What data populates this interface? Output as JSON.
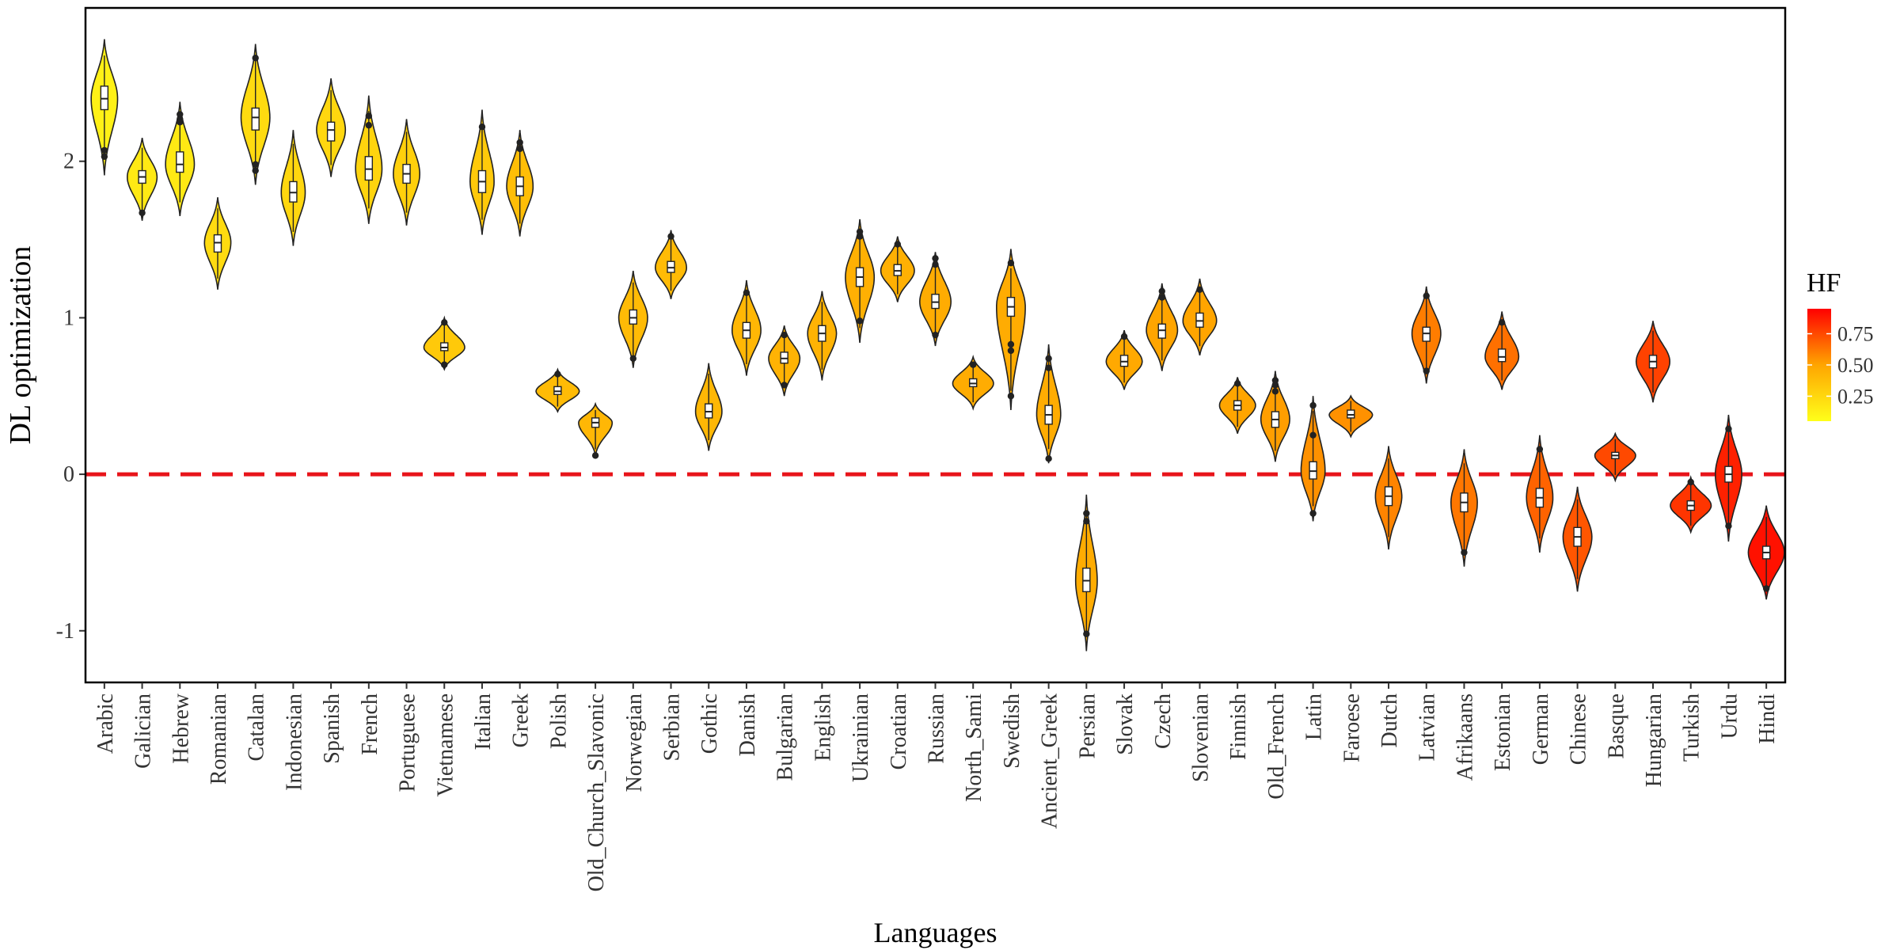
{
  "chart_data": {
    "type": "violin",
    "xlabel": "Languages",
    "ylabel": "DL optimization",
    "ylim": [
      -1.33,
      2.98
    ],
    "y_ticks": [
      "-1",
      "0",
      "1",
      "2"
    ],
    "y_tick_values": [
      -1,
      0,
      1,
      2
    ],
    "reference_line": {
      "y": 0,
      "style": "dashed",
      "color": "#e8141a"
    },
    "legend": {
      "title": "HF",
      "type": "colorbar",
      "placement": "right",
      "ticks": [
        "0.75",
        "0.50",
        "0.25"
      ],
      "tick_values": [
        0.75,
        0.5,
        0.25
      ],
      "range": [
        0.05,
        0.95
      ],
      "low_color": "#ffff1a",
      "mid_color": "#ffa500",
      "high_color": "#ff0000"
    },
    "categories": [
      {
        "name": "Arabic",
        "center": 2.4,
        "min": 1.91,
        "max": 2.78,
        "width": 0.55,
        "q1": 2.33,
        "q3": 2.48,
        "hf": 0.08,
        "outliers": [
          2.03,
          2.07
        ]
      },
      {
        "name": "Galician",
        "center": 1.9,
        "min": 1.62,
        "max": 2.15,
        "width": 0.62,
        "q1": 1.86,
        "q3": 1.94,
        "hf": 0.12,
        "outliers": [
          1.67
        ]
      },
      {
        "name": "Hebrew",
        "center": 1.98,
        "min": 1.65,
        "max": 2.38,
        "width": 0.6,
        "q1": 1.93,
        "q3": 2.06,
        "hf": 0.12,
        "outliers": [
          2.25,
          2.27,
          2.3
        ]
      },
      {
        "name": "Romanian",
        "center": 1.48,
        "min": 1.18,
        "max": 1.77,
        "width": 0.55,
        "q1": 1.42,
        "q3": 1.53,
        "hf": 0.2,
        "outliers": []
      },
      {
        "name": "Catalan",
        "center": 2.28,
        "min": 1.85,
        "max": 2.75,
        "width": 0.6,
        "q1": 2.2,
        "q3": 2.34,
        "hf": 0.2,
        "outliers": [
          1.94,
          1.98,
          2.66
        ]
      },
      {
        "name": "Indonesian",
        "center": 1.8,
        "min": 1.46,
        "max": 2.2,
        "width": 0.5,
        "q1": 1.74,
        "q3": 1.87,
        "hf": 0.22,
        "outliers": []
      },
      {
        "name": "Spanish",
        "center": 2.2,
        "min": 1.9,
        "max": 2.53,
        "width": 0.6,
        "q1": 2.13,
        "q3": 2.25,
        "hf": 0.22,
        "outliers": []
      },
      {
        "name": "French",
        "center": 1.95,
        "min": 1.6,
        "max": 2.42,
        "width": 0.55,
        "q1": 1.88,
        "q3": 2.03,
        "hf": 0.24,
        "outliers": [
          2.23,
          2.29
        ]
      },
      {
        "name": "Portuguese",
        "center": 1.92,
        "min": 1.59,
        "max": 2.27,
        "width": 0.55,
        "q1": 1.86,
        "q3": 1.98,
        "hf": 0.26,
        "outliers": []
      },
      {
        "name": "Vietnamese",
        "center": 0.81,
        "min": 0.67,
        "max": 1.0,
        "width": 0.85,
        "q1": 0.79,
        "q3": 0.84,
        "hf": 0.3,
        "outliers": [
          0.7,
          0.97
        ]
      },
      {
        "name": "Italian",
        "center": 1.87,
        "min": 1.53,
        "max": 2.33,
        "width": 0.5,
        "q1": 1.8,
        "q3": 1.94,
        "hf": 0.3,
        "outliers": [
          2.22
        ]
      },
      {
        "name": "Greek",
        "center": 1.84,
        "min": 1.52,
        "max": 2.2,
        "width": 0.55,
        "q1": 1.78,
        "q3": 1.9,
        "hf": 0.36,
        "outliers": [
          2.08,
          2.12
        ]
      },
      {
        "name": "Polish",
        "center": 0.53,
        "min": 0.4,
        "max": 0.67,
        "width": 0.9,
        "q1": 0.51,
        "q3": 0.56,
        "hf": 0.38,
        "outliers": [
          0.64
        ]
      },
      {
        "name": "Old_Church_Slavonic",
        "center": 0.33,
        "min": 0.12,
        "max": 0.45,
        "width": 0.7,
        "q1": 0.3,
        "q3": 0.36,
        "hf": 0.4,
        "outliers": [
          0.12
        ]
      },
      {
        "name": "Norwegian",
        "center": 1.0,
        "min": 0.68,
        "max": 1.3,
        "width": 0.6,
        "q1": 0.96,
        "q3": 1.05,
        "hf": 0.38,
        "outliers": [
          0.74
        ]
      },
      {
        "name": "Serbian",
        "center": 1.32,
        "min": 1.12,
        "max": 1.56,
        "width": 0.65,
        "q1": 1.29,
        "q3": 1.36,
        "hf": 0.38,
        "outliers": [
          1.52
        ]
      },
      {
        "name": "Gothic",
        "center": 0.4,
        "min": 0.15,
        "max": 0.71,
        "width": 0.55,
        "q1": 0.36,
        "q3": 0.45,
        "hf": 0.4,
        "outliers": []
      },
      {
        "name": "Danish",
        "center": 0.92,
        "min": 0.63,
        "max": 1.24,
        "width": 0.6,
        "q1": 0.87,
        "q3": 0.97,
        "hf": 0.4,
        "outliers": [
          1.16
        ]
      },
      {
        "name": "Bulgarian",
        "center": 0.74,
        "min": 0.5,
        "max": 0.95,
        "width": 0.65,
        "q1": 0.71,
        "q3": 0.78,
        "hf": 0.42,
        "outliers": [
          0.57,
          0.89
        ]
      },
      {
        "name": "English",
        "center": 0.9,
        "min": 0.6,
        "max": 1.17,
        "width": 0.6,
        "q1": 0.85,
        "q3": 0.95,
        "hf": 0.42,
        "outliers": []
      },
      {
        "name": "Ukrainian",
        "center": 1.26,
        "min": 0.84,
        "max": 1.63,
        "width": 0.6,
        "q1": 1.2,
        "q3": 1.32,
        "hf": 0.44,
        "outliers": [
          0.98,
          1.52,
          1.55
        ]
      },
      {
        "name": "Croatian",
        "center": 1.3,
        "min": 1.1,
        "max": 1.52,
        "width": 0.7,
        "q1": 1.27,
        "q3": 1.34,
        "hf": 0.44,
        "outliers": [
          1.47
        ]
      },
      {
        "name": "Russian",
        "center": 1.1,
        "min": 0.82,
        "max": 1.42,
        "width": 0.65,
        "q1": 1.06,
        "q3": 1.15,
        "hf": 0.46,
        "outliers": [
          0.89,
          1.34,
          1.38
        ]
      },
      {
        "name": "North_Sami",
        "center": 0.58,
        "min": 0.42,
        "max": 0.75,
        "width": 0.85,
        "q1": 0.56,
        "q3": 0.61,
        "hf": 0.46,
        "outliers": [
          0.7
        ]
      },
      {
        "name": "Swedish",
        "center": 1.07,
        "min": 0.41,
        "max": 1.44,
        "width": 0.6,
        "q1": 1.01,
        "q3": 1.13,
        "hf": 0.46,
        "outliers": [
          0.5,
          0.79,
          0.83,
          1.35
        ]
      },
      {
        "name": "Ancient_Greek",
        "center": 0.38,
        "min": 0.07,
        "max": 0.83,
        "width": 0.5,
        "q1": 0.32,
        "q3": 0.44,
        "hf": 0.46,
        "outliers": [
          0.1,
          0.68,
          0.74
        ]
      },
      {
        "name": "Persian",
        "center": -0.68,
        "min": -1.13,
        "max": -0.13,
        "width": 0.45,
        "q1": -0.75,
        "q3": -0.6,
        "hf": 0.46,
        "outliers": [
          -1.02,
          -0.3,
          -0.25
        ]
      },
      {
        "name": "Slovak",
        "center": 0.72,
        "min": 0.54,
        "max": 0.92,
        "width": 0.75,
        "q1": 0.69,
        "q3": 0.76,
        "hf": 0.48,
        "outliers": [
          0.88
        ]
      },
      {
        "name": "Czech",
        "center": 0.92,
        "min": 0.66,
        "max": 1.22,
        "width": 0.65,
        "q1": 0.87,
        "q3": 0.96,
        "hf": 0.5,
        "outliers": [
          1.13,
          1.17
        ]
      },
      {
        "name": "Slovenian",
        "center": 0.98,
        "min": 0.76,
        "max": 1.25,
        "width": 0.7,
        "q1": 0.94,
        "q3": 1.03,
        "hf": 0.5,
        "outliers": [
          1.18
        ]
      },
      {
        "name": "Finnish",
        "center": 0.44,
        "min": 0.26,
        "max": 0.62,
        "width": 0.75,
        "q1": 0.41,
        "q3": 0.47,
        "hf": 0.5,
        "outliers": [
          0.58
        ]
      },
      {
        "name": "Old_French",
        "center": 0.35,
        "min": 0.08,
        "max": 0.66,
        "width": 0.6,
        "q1": 0.3,
        "q3": 0.4,
        "hf": 0.52,
        "outliers": [
          0.53,
          0.57,
          0.6
        ]
      },
      {
        "name": "Latin",
        "center": 0.02,
        "min": -0.3,
        "max": 0.5,
        "width": 0.5,
        "q1": -0.03,
        "q3": 0.08,
        "hf": 0.56,
        "outliers": [
          -0.25,
          0.25,
          0.44
        ]
      },
      {
        "name": "Faroese",
        "center": 0.38,
        "min": 0.24,
        "max": 0.5,
        "width": 0.9,
        "q1": 0.36,
        "q3": 0.41,
        "hf": 0.56,
        "outliers": []
      },
      {
        "name": "Dutch",
        "center": -0.14,
        "min": -0.48,
        "max": 0.18,
        "width": 0.55,
        "q1": -0.2,
        "q3": -0.08,
        "hf": 0.6,
        "outliers": []
      },
      {
        "name": "Latvian",
        "center": 0.9,
        "min": 0.58,
        "max": 1.2,
        "width": 0.6,
        "q1": 0.85,
        "q3": 0.94,
        "hf": 0.62,
        "outliers": [
          0.66,
          1.14
        ]
      },
      {
        "name": "Afrikaans",
        "center": -0.18,
        "min": -0.59,
        "max": 0.16,
        "width": 0.55,
        "q1": -0.24,
        "q3": -0.12,
        "hf": 0.64,
        "outliers": [
          -0.5
        ]
      },
      {
        "name": "Estonian",
        "center": 0.75,
        "min": 0.54,
        "max": 1.04,
        "width": 0.7,
        "q1": 0.72,
        "q3": 0.8,
        "hf": 0.66,
        "outliers": [
          0.97
        ]
      },
      {
        "name": "German",
        "center": -0.15,
        "min": -0.5,
        "max": 0.25,
        "width": 0.55,
        "q1": -0.21,
        "q3": -0.09,
        "hf": 0.7,
        "outliers": [
          0.16
        ]
      },
      {
        "name": "Chinese",
        "center": -0.4,
        "min": -0.75,
        "max": -0.08,
        "width": 0.6,
        "q1": -0.46,
        "q3": -0.34,
        "hf": 0.74,
        "outliers": []
      },
      {
        "name": "Basque",
        "center": 0.12,
        "min": -0.04,
        "max": 0.26,
        "width": 0.85,
        "q1": 0.1,
        "q3": 0.14,
        "hf": 0.78,
        "outliers": []
      },
      {
        "name": "Hungarian",
        "center": 0.72,
        "min": 0.46,
        "max": 0.98,
        "width": 0.7,
        "q1": 0.68,
        "q3": 0.76,
        "hf": 0.8,
        "outliers": []
      },
      {
        "name": "Turkish",
        "center": -0.2,
        "min": -0.37,
        "max": -0.02,
        "width": 0.85,
        "q1": -0.23,
        "q3": -0.17,
        "hf": 0.84,
        "outliers": [
          -0.05
        ]
      },
      {
        "name": "Urdu",
        "center": 0.0,
        "min": -0.43,
        "max": 0.38,
        "width": 0.55,
        "q1": -0.05,
        "q3": 0.05,
        "hf": 0.9,
        "outliers": [
          -0.33,
          0.29
        ]
      },
      {
        "name": "Hindi",
        "center": -0.5,
        "min": -0.8,
        "max": -0.2,
        "width": 0.75,
        "q1": -0.54,
        "q3": -0.46,
        "hf": 0.95,
        "outliers": [
          -0.73
        ]
      }
    ]
  }
}
